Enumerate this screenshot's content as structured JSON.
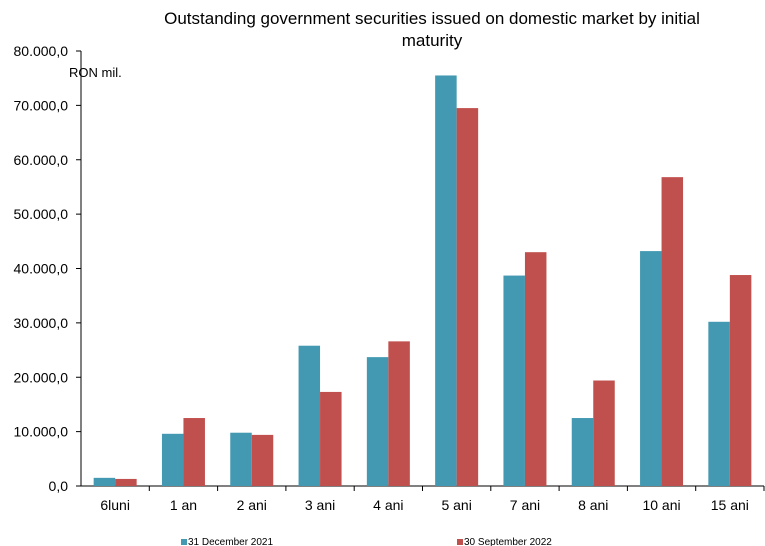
{
  "chart_data": {
    "type": "bar",
    "title_lines": [
      "Outstanding government securities issued on domestic market by initial",
      "maturity"
    ],
    "ylabel": "RON mil.",
    "xlabel": "",
    "ylim": [
      0,
      80000
    ],
    "yticks": [
      0,
      10000,
      20000,
      30000,
      40000,
      50000,
      60000,
      70000,
      80000
    ],
    "ytick_labels": [
      "0,0",
      "10.000,0",
      "20.000,0",
      "30.000,0",
      "40.000,0",
      "50.000,0",
      "60.000,0",
      "70.000,0",
      "80.000,0"
    ],
    "categories": [
      "6luni",
      "1 an",
      "2 ani",
      "3 ani",
      "4 ani",
      "5 ani",
      "7 ani",
      "8 ani",
      "10 ani",
      "15 ani"
    ],
    "series": [
      {
        "name": "31 December 2021",
        "color": "#4299b1",
        "values": [
          1500,
          9600,
          9800,
          25800,
          23700,
          75500,
          38700,
          12500,
          43200,
          30200
        ]
      },
      {
        "name": "30 September 2022",
        "color": "#c0504d",
        "values": [
          1300,
          12500,
          9400,
          17300,
          26600,
          69500,
          43000,
          19400,
          56800,
          38800
        ]
      }
    ],
    "grid": false,
    "legend_position": "bottom"
  }
}
